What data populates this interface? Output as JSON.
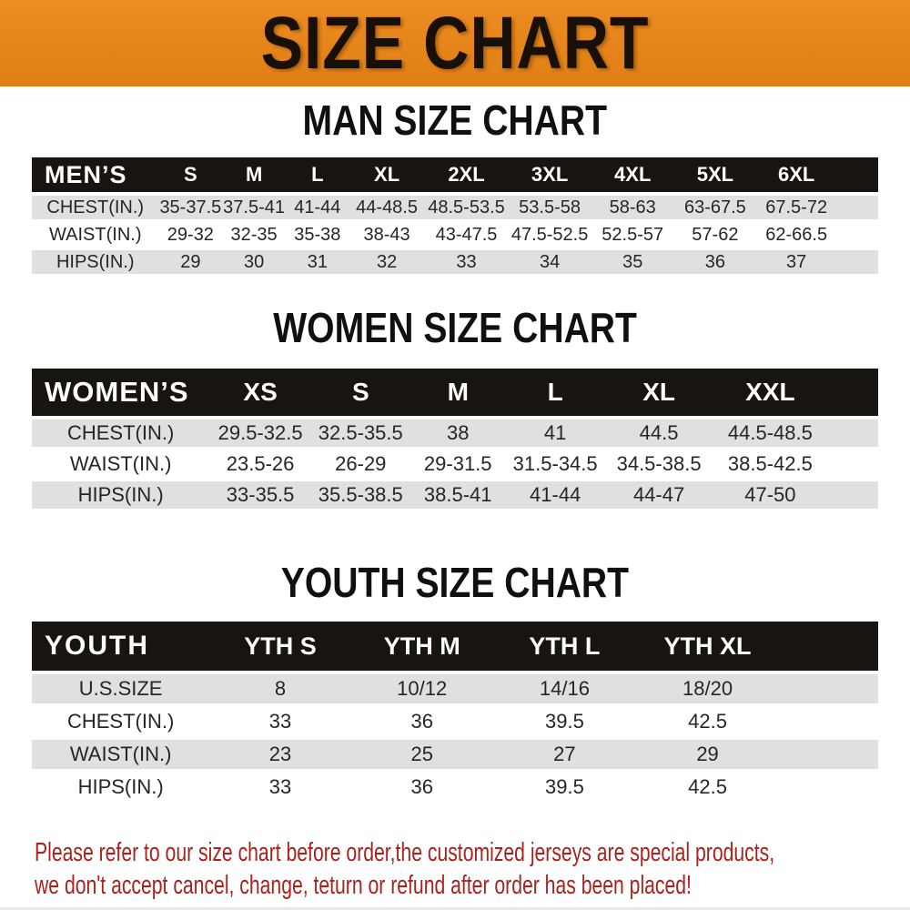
{
  "banner": {
    "title": "SIZE CHART",
    "bg_color": "#E8861E"
  },
  "colors": {
    "header_bar": "#18140F",
    "row_gray": "#E0E0E0",
    "footer_red": "#A8231E"
  },
  "sections": [
    {
      "heading": "MAN SIZE CHART",
      "table": {
        "label": "MEN’S",
        "columns": [
          "S",
          "M",
          "L",
          "XL",
          "2XL",
          "3XL",
          "4XL",
          "5XL",
          "6XL"
        ],
        "rows": [
          {
            "label": "CHEST(IN.)",
            "values": [
              "35-37.5",
              "37.5-41",
              "41-44",
              "44-48.5",
              "48.5-53.5",
              "53.5-58",
              "58-63",
              "63-67.5",
              "67.5-72"
            ]
          },
          {
            "label": "WAIST(IN.)",
            "values": [
              "29-32",
              "32-35",
              "35-38",
              "38-43",
              "43-47.5",
              "47.5-52.5",
              "52.5-57",
              "57-62",
              "62-66.5"
            ]
          },
          {
            "label": "HIPS(IN.)",
            "values": [
              "29",
              "30",
              "31",
              "32",
              "33",
              "34",
              "35",
              "36",
              "37"
            ]
          }
        ]
      }
    },
    {
      "heading": "WOMEN SIZE CHART",
      "table": {
        "label": "WOMEN’S",
        "columns": [
          "XS",
          "S",
          "M",
          "L",
          "XL",
          "XXL"
        ],
        "rows": [
          {
            "label": "CHEST(IN.)",
            "values": [
              "29.5-32.5",
              "32.5-35.5",
              "38",
              "41",
              "44.5",
              "44.5-48.5"
            ]
          },
          {
            "label": "WAIST(IN.)",
            "values": [
              "23.5-26",
              "26-29",
              "29-31.5",
              "31.5-34.5",
              "34.5-38.5",
              "38.5-42.5"
            ]
          },
          {
            "label": "HIPS(IN.)",
            "values": [
              "33-35.5",
              "35.5-38.5",
              "38.5-41",
              "41-44",
              "44-47",
              "47-50"
            ]
          }
        ]
      }
    },
    {
      "heading": "YOUTH SIZE CHART",
      "table": {
        "label": "YOUTH",
        "columns": [
          "YTH S",
          "YTH M",
          "YTH L",
          "YTH XL"
        ],
        "rows": [
          {
            "label": "U.S.SIZE",
            "values": [
              "8",
              "10/12",
              "14/16",
              "18/20"
            ]
          },
          {
            "label": "CHEST(IN.)",
            "values": [
              "33",
              "36",
              "39.5",
              "42.5"
            ]
          },
          {
            "label": "WAIST(IN.)",
            "values": [
              "23",
              "25",
              "27",
              "29"
            ]
          },
          {
            "label": "HIPS(IN.)",
            "values": [
              "33",
              "36",
              "39.5",
              "42.5"
            ]
          }
        ]
      }
    }
  ],
  "footer": {
    "line1": "Please refer to our size chart before order,the customized jerseys are special products,",
    "line2": "we don't accept cancel, change, teturn or refund after order has been placed!"
  }
}
